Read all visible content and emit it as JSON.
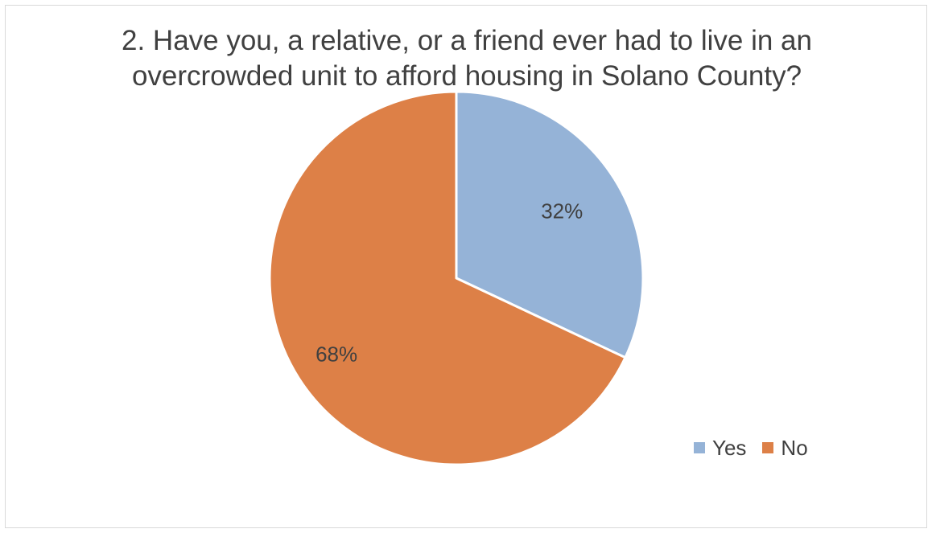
{
  "chart_data": {
    "type": "pie",
    "title_lines": [
      "2. Have you, a relative, or a friend ever had to live in an",
      "overcrowded unit to afford housing in Solano County?"
    ],
    "slices": [
      {
        "label": "Yes",
        "value": 32,
        "data_label": "32%",
        "color": "#95b3d7"
      },
      {
        "label": "No",
        "value": 68,
        "data_label": "68%",
        "color": "#dd8047"
      }
    ],
    "legend_position": "bottom-right",
    "start_angle": "12 o'clock, clockwise"
  }
}
